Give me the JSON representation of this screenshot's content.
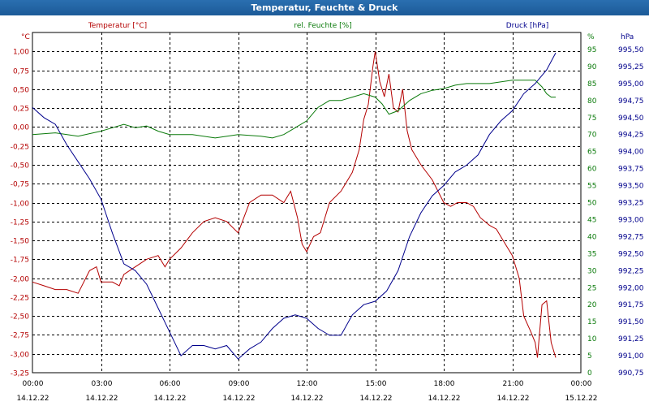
{
  "window": {
    "title": "Temperatur, Feuchte & Druck"
  },
  "colors": {
    "temperature": "#b40000",
    "humidity": "#0a7a0a",
    "pressure": "#00008c",
    "grid": "#000000",
    "text": "#000000"
  },
  "chart_data": {
    "type": "line",
    "title": "Temperatur, Feuchte & Druck",
    "grid": true,
    "x_ticks": [
      {
        "time": "00:00",
        "date": "14.12.22"
      },
      {
        "time": "03:00",
        "date": "14.12.22"
      },
      {
        "time": "06:00",
        "date": "14.12.22"
      },
      {
        "time": "09:00",
        "date": "14.12.22"
      },
      {
        "time": "12:00",
        "date": "14.12.22"
      },
      {
        "time": "15:00",
        "date": "14.12.22"
      },
      {
        "time": "18:00",
        "date": "14.12.22"
      },
      {
        "time": "21:00",
        "date": "14.12.22"
      },
      {
        "time": "00:00",
        "date": "15.12.22"
      }
    ],
    "x_unit": "hours",
    "xlim": [
      0,
      24
    ],
    "axes": {
      "temperature": {
        "label": "Temperatur [°C]",
        "unit": "°C",
        "ylim": [
          -3.25,
          1.25
        ],
        "ticks": [
          "1,00",
          "0,75",
          "0,50",
          "0,25",
          "0,00",
          "-0,25",
          "-0,50",
          "-0,75",
          "-1,00",
          "-1,25",
          "-1,50",
          "-1,75",
          "-2,00",
          "-2,25",
          "-2,50",
          "-2,75",
          "-3,00",
          "-3,25"
        ],
        "tick_values": [
          1.0,
          0.75,
          0.5,
          0.25,
          0.0,
          -0.25,
          -0.5,
          -0.75,
          -1.0,
          -1.25,
          -1.5,
          -1.75,
          -2.0,
          -2.25,
          -2.5,
          -2.75,
          -3.0,
          -3.25
        ]
      },
      "humidity": {
        "label": "rel. Feuchte [%]",
        "unit": "%",
        "ylim": [
          0,
          100
        ],
        "ticks": [
          "95",
          "90",
          "85",
          "80",
          "75",
          "70",
          "65",
          "60",
          "55",
          "50",
          "45",
          "40",
          "35",
          "30",
          "25",
          "20",
          "15",
          "10",
          "5",
          "0"
        ],
        "tick_values": [
          95,
          90,
          85,
          80,
          75,
          70,
          65,
          60,
          55,
          50,
          45,
          40,
          35,
          30,
          25,
          20,
          15,
          10,
          5,
          0
        ]
      },
      "pressure": {
        "label": "Druck [hPa]",
        "unit": "hPa",
        "ylim": [
          990.75,
          995.75
        ],
        "ticks": [
          "995,50",
          "995,25",
          "995,00",
          "994,75",
          "994,50",
          "994,25",
          "994,00",
          "993,75",
          "993,50",
          "993,25",
          "993,00",
          "992,75",
          "992,50",
          "992,25",
          "992,00",
          "991,75",
          "991,50",
          "991,25",
          "991,00",
          "990,75"
        ],
        "tick_values": [
          995.5,
          995.25,
          995.0,
          994.75,
          994.5,
          994.25,
          994.0,
          993.75,
          993.5,
          993.25,
          993.0,
          992.75,
          992.5,
          992.25,
          992.0,
          991.75,
          991.5,
          991.25,
          991.0,
          990.75
        ]
      }
    },
    "series": [
      {
        "name": "Temperatur [°C]",
        "axis": "temperature",
        "points": [
          [
            0,
            -2.05
          ],
          [
            0.5,
            -2.1
          ],
          [
            1,
            -2.15
          ],
          [
            1.5,
            -2.15
          ],
          [
            2,
            -2.2
          ],
          [
            2.5,
            -1.9
          ],
          [
            2.8,
            -1.85
          ],
          [
            3,
            -2.05
          ],
          [
            3.5,
            -2.05
          ],
          [
            3.8,
            -2.1
          ],
          [
            4,
            -1.95
          ],
          [
            4.5,
            -1.85
          ],
          [
            5,
            -1.75
          ],
          [
            5.5,
            -1.7
          ],
          [
            5.8,
            -1.85
          ],
          [
            6,
            -1.75
          ],
          [
            6.5,
            -1.6
          ],
          [
            7,
            -1.4
          ],
          [
            7.5,
            -1.25
          ],
          [
            8,
            -1.2
          ],
          [
            8.5,
            -1.25
          ],
          [
            9,
            -1.4
          ],
          [
            9.5,
            -1.0
          ],
          [
            10,
            -0.9
          ],
          [
            10.5,
            -0.9
          ],
          [
            11,
            -1.0
          ],
          [
            11.3,
            -0.85
          ],
          [
            11.6,
            -1.2
          ],
          [
            11.8,
            -1.55
          ],
          [
            12,
            -1.65
          ],
          [
            12.3,
            -1.45
          ],
          [
            12.6,
            -1.4
          ],
          [
            13,
            -1.0
          ],
          [
            13.5,
            -0.85
          ],
          [
            14,
            -0.6
          ],
          [
            14.3,
            -0.3
          ],
          [
            14.5,
            0.1
          ],
          [
            14.7,
            0.3
          ],
          [
            14.9,
            0.8
          ],
          [
            15.0,
            1.0
          ],
          [
            15.2,
            0.6
          ],
          [
            15.4,
            0.4
          ],
          [
            15.6,
            0.7
          ],
          [
            15.8,
            0.25
          ],
          [
            16.0,
            0.2
          ],
          [
            16.2,
            0.5
          ],
          [
            16.4,
            -0.05
          ],
          [
            16.6,
            -0.3
          ],
          [
            17,
            -0.5
          ],
          [
            17.5,
            -0.7
          ],
          [
            18,
            -1.0
          ],
          [
            18.3,
            -1.05
          ],
          [
            18.6,
            -1.0
          ],
          [
            19,
            -1.0
          ],
          [
            19.3,
            -1.05
          ],
          [
            19.6,
            -1.2
          ],
          [
            20,
            -1.3
          ],
          [
            20.3,
            -1.35
          ],
          [
            20.6,
            -1.5
          ],
          [
            21,
            -1.7
          ],
          [
            21.3,
            -2.0
          ],
          [
            21.5,
            -2.5
          ],
          [
            21.8,
            -2.7
          ],
          [
            22.0,
            -2.85
          ],
          [
            22.1,
            -3.05
          ],
          [
            22.3,
            -2.35
          ],
          [
            22.5,
            -2.3
          ],
          [
            22.7,
            -2.85
          ],
          [
            22.9,
            -3.05
          ]
        ]
      },
      {
        "name": "rel. Feuchte [%]",
        "axis": "humidity",
        "points": [
          [
            0,
            70
          ],
          [
            1,
            70.5
          ],
          [
            2,
            69.5
          ],
          [
            3,
            71
          ],
          [
            3.5,
            72
          ],
          [
            4,
            73
          ],
          [
            4.5,
            72
          ],
          [
            5,
            72.5
          ],
          [
            5.5,
            71
          ],
          [
            6,
            70
          ],
          [
            7,
            70
          ],
          [
            8,
            69
          ],
          [
            9,
            70
          ],
          [
            10,
            69.5
          ],
          [
            10.5,
            69
          ],
          [
            11,
            70
          ],
          [
            11.5,
            72
          ],
          [
            12,
            74
          ],
          [
            12.5,
            78
          ],
          [
            13,
            80
          ],
          [
            13.5,
            80
          ],
          [
            14,
            81
          ],
          [
            14.5,
            82
          ],
          [
            15,
            81
          ],
          [
            15.3,
            79
          ],
          [
            15.6,
            76
          ],
          [
            16,
            77
          ],
          [
            16.5,
            80
          ],
          [
            17,
            82
          ],
          [
            17.5,
            83
          ],
          [
            18,
            83.5
          ],
          [
            18.5,
            84.5
          ],
          [
            19,
            85
          ],
          [
            20,
            85
          ],
          [
            21,
            86
          ],
          [
            22,
            86
          ],
          [
            22.3,
            84
          ],
          [
            22.5,
            82
          ],
          [
            22.7,
            81
          ],
          [
            22.9,
            81
          ]
        ]
      },
      {
        "name": "Druck [hPa]",
        "axis": "pressure",
        "points": [
          [
            0,
            994.65
          ],
          [
            0.5,
            994.5
          ],
          [
            1,
            994.4
          ],
          [
            1.5,
            994.1
          ],
          [
            2,
            993.85
          ],
          [
            2.5,
            993.6
          ],
          [
            3,
            993.3
          ],
          [
            3.5,
            992.8
          ],
          [
            4,
            992.35
          ],
          [
            4.5,
            992.25
          ],
          [
            5,
            992.05
          ],
          [
            5.5,
            991.7
          ],
          [
            6,
            991.35
          ],
          [
            6.5,
            991.0
          ],
          [
            7,
            991.15
          ],
          [
            7.5,
            991.15
          ],
          [
            8,
            991.1
          ],
          [
            8.5,
            991.15
          ],
          [
            9,
            990.95
          ],
          [
            9.5,
            991.1
          ],
          [
            10,
            991.2
          ],
          [
            10.5,
            991.4
          ],
          [
            11,
            991.55
          ],
          [
            11.5,
            991.6
          ],
          [
            12,
            991.55
          ],
          [
            12.5,
            991.4
          ],
          [
            13,
            991.3
          ],
          [
            13.5,
            991.3
          ],
          [
            14,
            991.6
          ],
          [
            14.5,
            991.75
          ],
          [
            15,
            991.8
          ],
          [
            15.5,
            991.95
          ],
          [
            16,
            992.25
          ],
          [
            16.5,
            992.75
          ],
          [
            17,
            993.1
          ],
          [
            17.5,
            993.35
          ],
          [
            18,
            993.5
          ],
          [
            18.5,
            993.7
          ],
          [
            19,
            993.8
          ],
          [
            19.5,
            993.95
          ],
          [
            20,
            994.25
          ],
          [
            20.5,
            994.45
          ],
          [
            21,
            994.6
          ],
          [
            21.5,
            994.85
          ],
          [
            22,
            995.0
          ],
          [
            22.5,
            995.2
          ],
          [
            22.9,
            995.45
          ]
        ]
      }
    ]
  }
}
